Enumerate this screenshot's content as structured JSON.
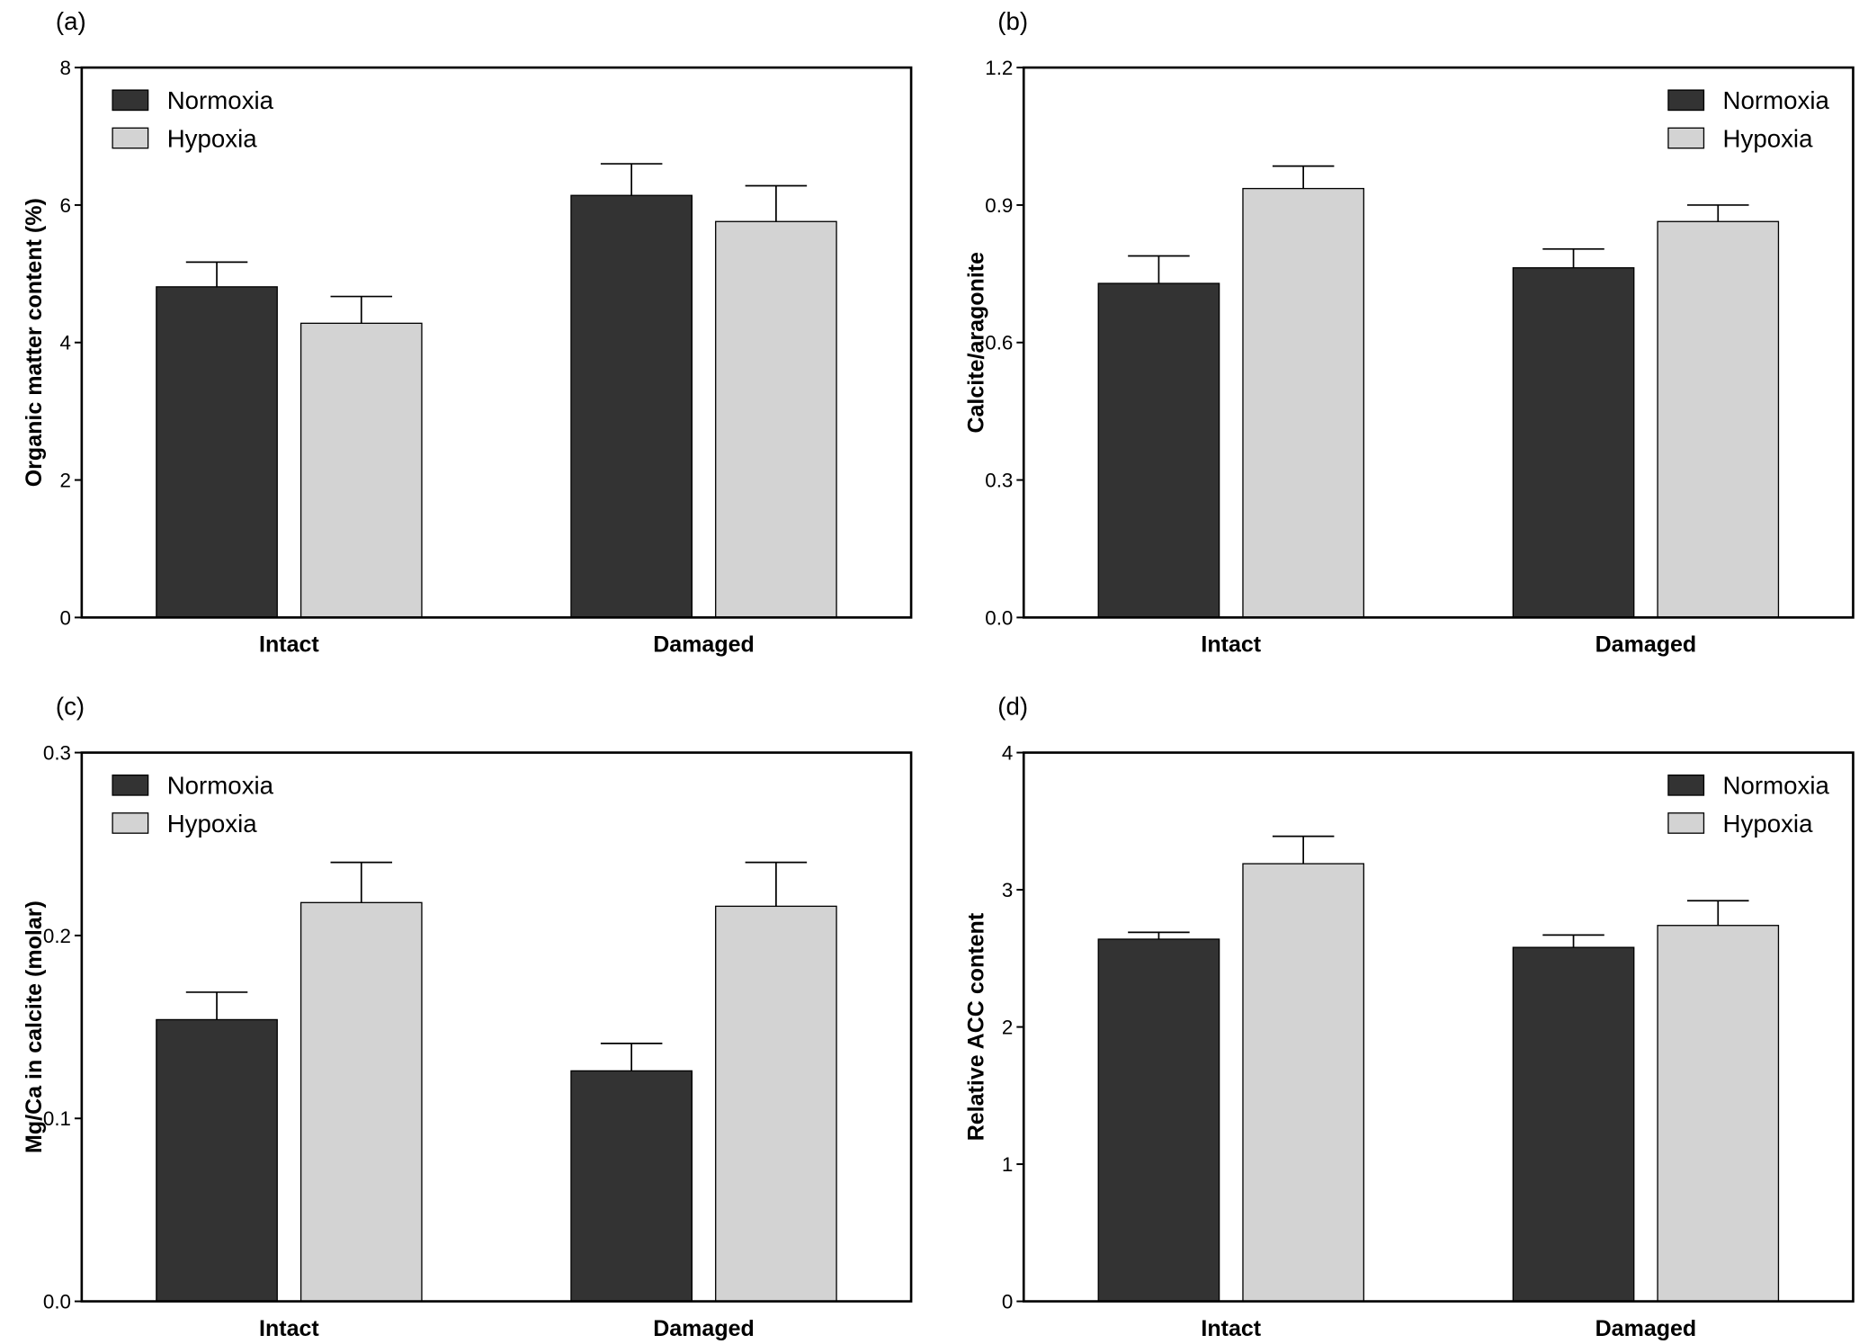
{
  "chart_data": [
    {
      "type": "bar",
      "label": "(a)",
      "ylabel": "Organic matter content (%)",
      "categories": [
        "Intact",
        "Damaged"
      ],
      "series": [
        {
          "name": "Normoxia",
          "color": "#333333",
          "values": [
            4.81,
            6.14
          ],
          "errors": [
            0.36,
            0.46
          ]
        },
        {
          "name": "Hypoxia",
          "color": "#d3d3d3",
          "values": [
            4.28,
            5.76
          ],
          "errors": [
            0.39,
            0.52
          ]
        }
      ],
      "ylim": [
        0,
        8
      ],
      "yticks": [
        0,
        2,
        4,
        6,
        8
      ],
      "legend": "upper-left"
    },
    {
      "type": "bar",
      "label": "(b)",
      "ylabel": "Calcite/aragonite",
      "categories": [
        "Intact",
        "Damaged"
      ],
      "series": [
        {
          "name": "Normoxia",
          "color": "#333333",
          "values": [
            0.729,
            0.763
          ],
          "errors": [
            0.06,
            0.041
          ]
        },
        {
          "name": "Hypoxia",
          "color": "#d3d3d3",
          "values": [
            0.936,
            0.864
          ],
          "errors": [
            0.049,
            0.036
          ]
        }
      ],
      "ylim": [
        0,
        1.2
      ],
      "yticks": [
        {
          "value": 0,
          "label": "0.0"
        },
        0.3,
        0.6,
        0.9,
        1.2
      ],
      "legend": "upper-right"
    },
    {
      "type": "bar",
      "label": "(c)",
      "ylabel": "Mg/Ca in calcite (molar)",
      "categories": [
        "Intact",
        "Damaged"
      ],
      "series": [
        {
          "name": "Normoxia",
          "color": "#333333",
          "values": [
            0.154,
            0.126
          ],
          "errors": [
            0.015,
            0.015
          ]
        },
        {
          "name": "Hypoxia",
          "color": "#d3d3d3",
          "values": [
            0.218,
            0.216
          ],
          "errors": [
            0.022,
            0.024
          ]
        }
      ],
      "ylim": [
        0,
        0.3
      ],
      "yticks": [
        {
          "value": 0,
          "label": "0.0"
        },
        0.1,
        0.2,
        0.3
      ],
      "legend": "upper-left"
    },
    {
      "type": "bar",
      "label": "(d)",
      "ylabel": "Relative ACC content",
      "categories": [
        "Intact",
        "Damaged"
      ],
      "series": [
        {
          "name": "Normoxia",
          "color": "#333333",
          "values": [
            2.64,
            2.58
          ],
          "errors": [
            0.05,
            0.09
          ]
        },
        {
          "name": "Hypoxia",
          "color": "#d3d3d3",
          "values": [
            3.19,
            2.74
          ],
          "errors": [
            0.2,
            0.18
          ]
        }
      ],
      "ylim": [
        0,
        4
      ],
      "yticks": [
        0,
        1,
        2,
        3,
        4
      ],
      "legend": "upper-right"
    }
  ]
}
